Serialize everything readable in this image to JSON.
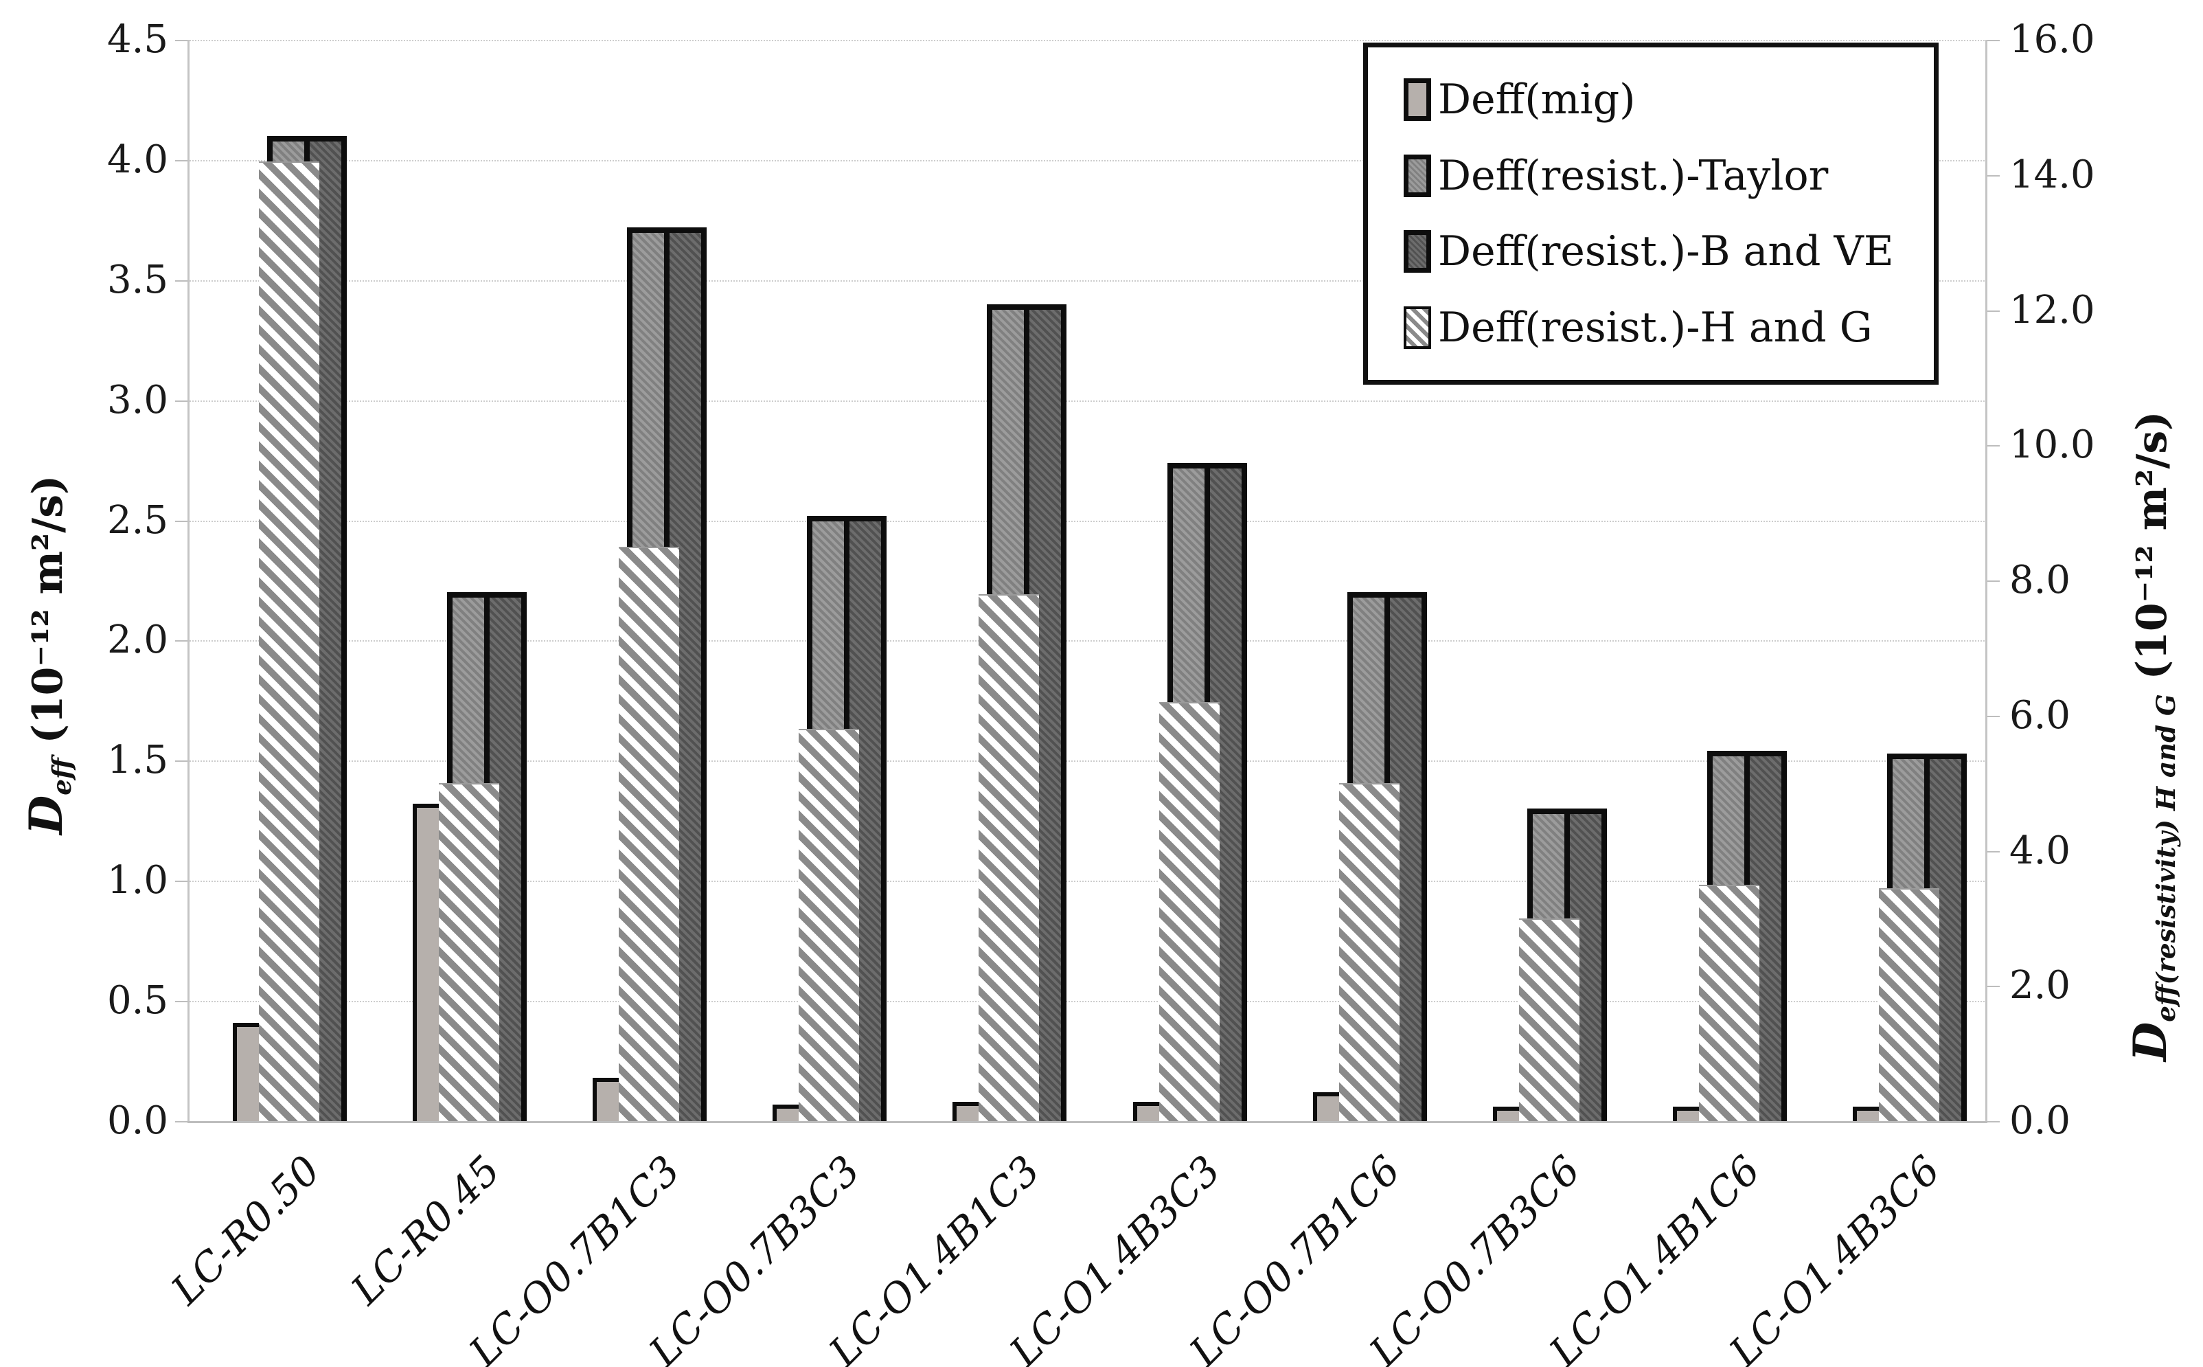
{
  "chart_data": {
    "type": "bar",
    "title": "",
    "categories": [
      "LC-R0.50",
      "LC-R0.45",
      "LC-O0.7B1C3",
      "LC-O0.7B3C3",
      "LC-O1.4B1C3",
      "LC-O1.4B3C3",
      "LC-O0.7B1C6",
      "LC-O0.7B3C6",
      "LC-O1.4B1C6",
      "LC-O1.4B3C6"
    ],
    "series": [
      {
        "name": "Deff(mig)",
        "style": "mig",
        "axis": "left",
        "values": [
          0.41,
          1.32,
          0.18,
          0.07,
          0.08,
          0.08,
          0.12,
          0.06,
          0.06,
          0.06
        ]
      },
      {
        "name": "Deff(resist.)-Taylor",
        "style": "taylor",
        "axis": "left",
        "values": [
          4.1,
          2.2,
          3.72,
          2.52,
          3.4,
          2.74,
          2.2,
          1.3,
          1.54,
          1.53
        ]
      },
      {
        "name": "Deff(resist.)-B and VE",
        "style": "bve",
        "axis": "left",
        "values": [
          4.1,
          2.2,
          3.72,
          2.52,
          3.4,
          2.74,
          2.2,
          1.3,
          1.54,
          1.53
        ]
      },
      {
        "name": "Deff(resist.)-H and G",
        "style": "hatch",
        "axis": "right",
        "values": [
          14.2,
          5.0,
          8.5,
          5.8,
          7.8,
          6.2,
          5.0,
          3.0,
          3.5,
          3.45
        ]
      }
    ],
    "left_axis": {
      "min": 0,
      "max": 4.5,
      "ticks": [
        "0.0",
        "0.5",
        "1.0",
        "1.5",
        "2.0",
        "2.5",
        "3.0",
        "3.5",
        "4.0",
        "4.5"
      ],
      "title": {
        "symbol": "D",
        "subscript": "eff",
        "unit": " (10⁻¹² m²/s)"
      }
    },
    "right_axis": {
      "min": 0,
      "max": 16,
      "ticks": [
        "0.0",
        "2.0",
        "4.0",
        "6.0",
        "8.0",
        "10.0",
        "12.0",
        "14.0",
        "16.0"
      ],
      "title": {
        "symbol": "D",
        "subscript": "eff(resistivity) H and G",
        "unit": " (10⁻¹² m²/s)"
      }
    },
    "grid": true,
    "legend_position": "top-right"
  },
  "colors": {
    "mig_fill": "#b6b0ac",
    "taylor_fill": "#8e8e8e",
    "bve_fill": "#5c5c5c",
    "hatch_stripe": "#8a8a8a",
    "outline": "#0d0d0d",
    "gridline": "#cdcdcd",
    "axis_line": "#c4c4c4"
  }
}
